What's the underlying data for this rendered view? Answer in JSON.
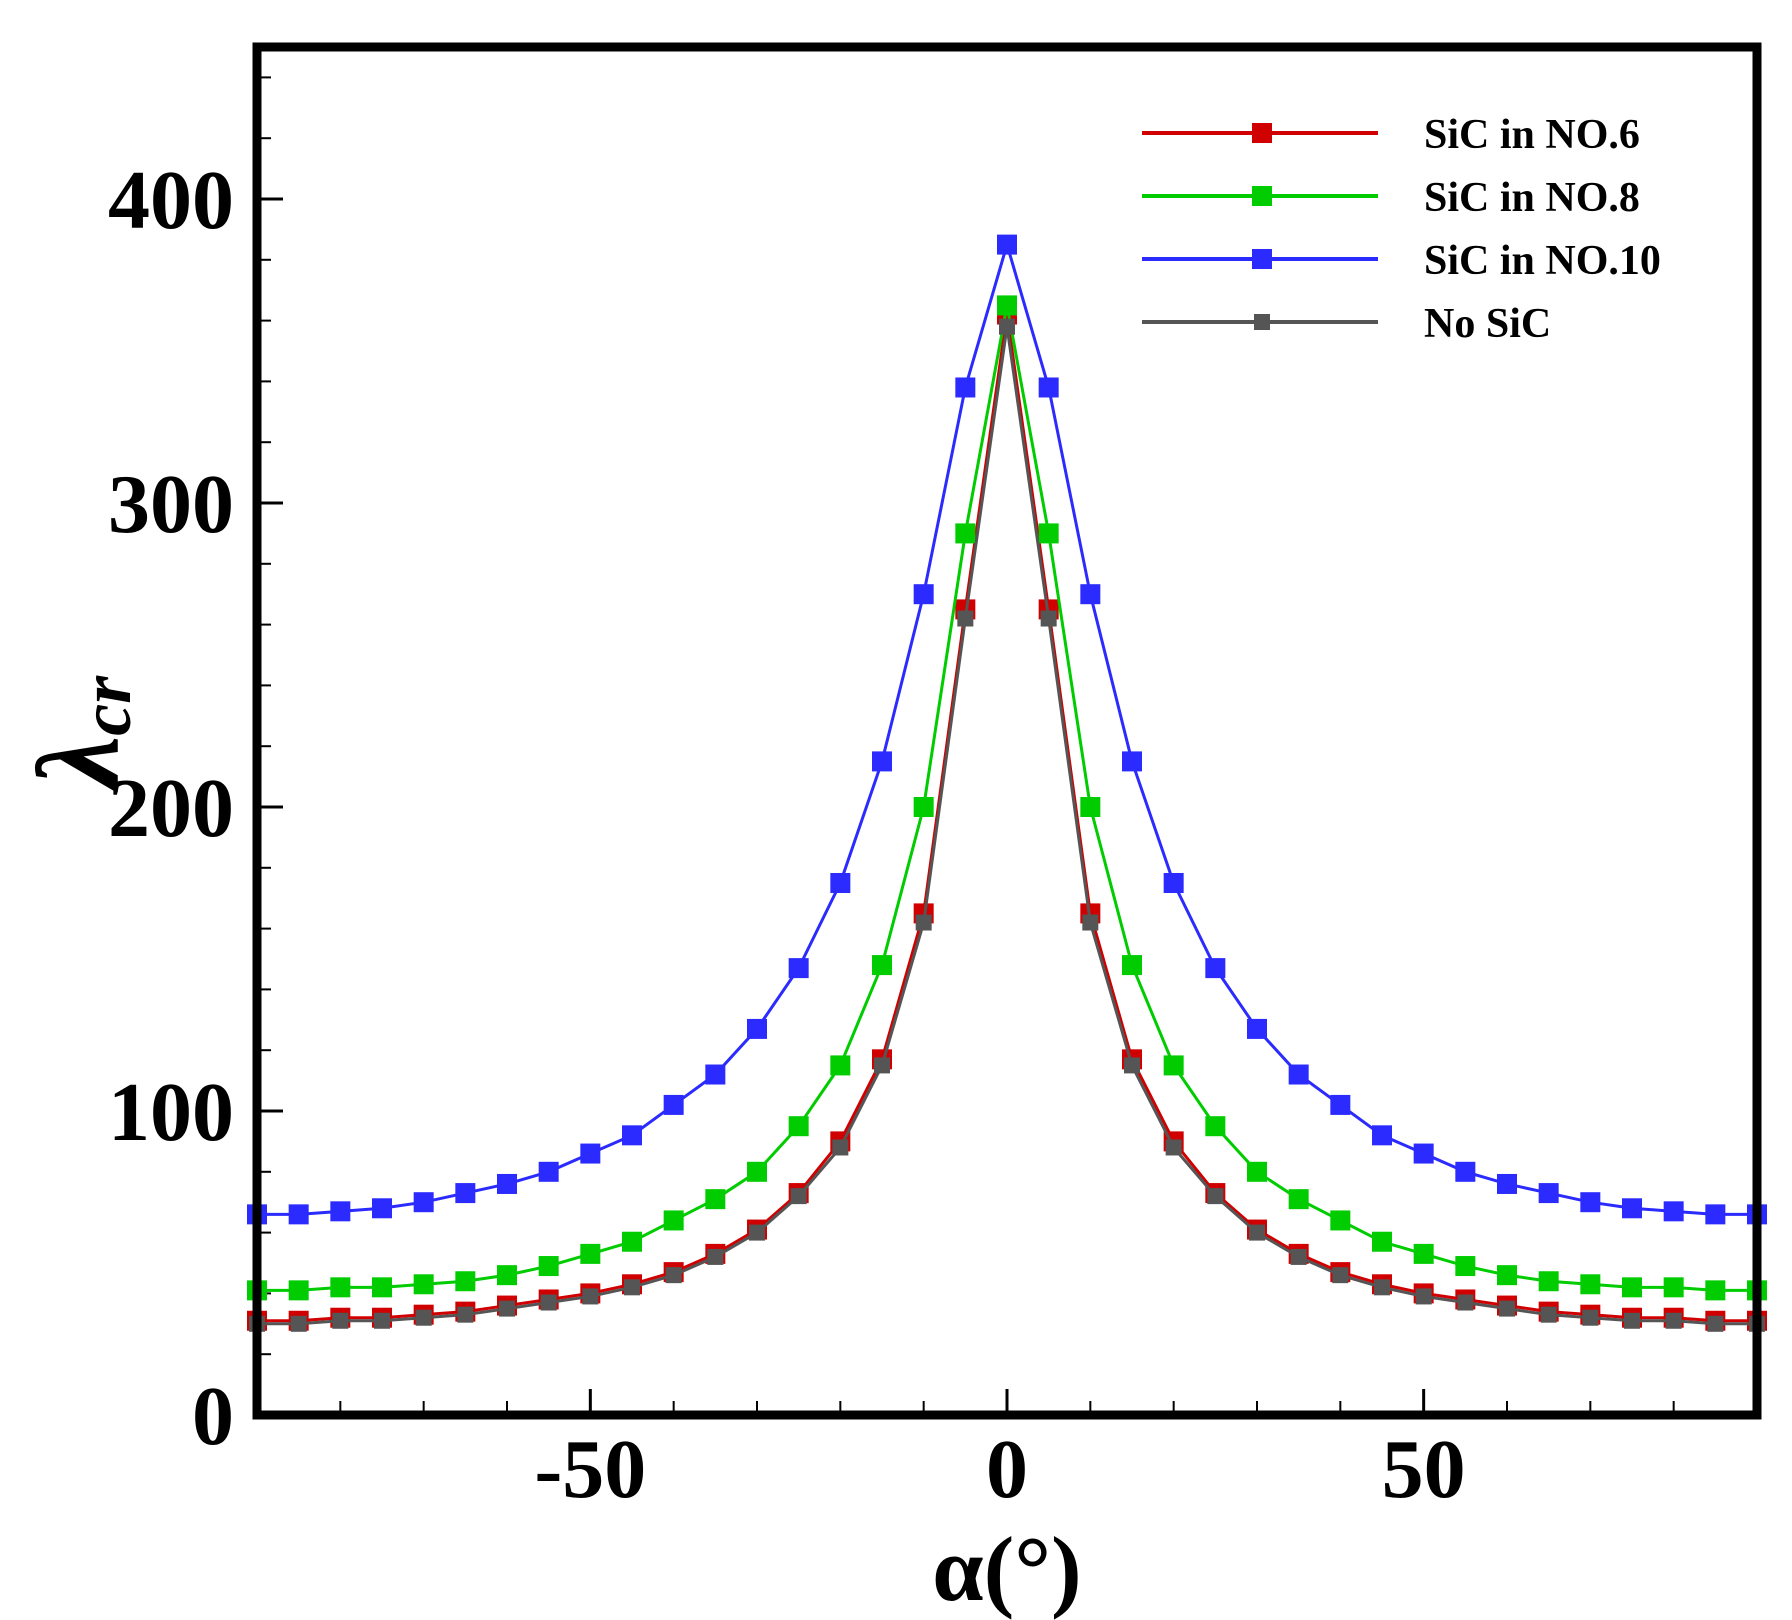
{
  "chart_data": {
    "type": "line",
    "title": "",
    "xlabel": "α(°)",
    "ylabel_main": "λ",
    "ylabel_sub": "cr",
    "xlim": [
      -90,
      90
    ],
    "ylim": [
      0,
      450
    ],
    "xticks": [
      -50,
      0,
      50
    ],
    "xtick_labels": [
      "-50",
      "0",
      "50"
    ],
    "yticks": [
      0,
      100,
      200,
      300,
      400
    ],
    "ytick_labels": [
      "0",
      "100",
      "200",
      "300",
      "400"
    ],
    "x_minor_step": 10,
    "y_minor_step": 20,
    "grid": false,
    "legend_position": "top-right",
    "x": [
      -90,
      -85,
      -80,
      -75,
      -70,
      -65,
      -60,
      -55,
      -50,
      -45,
      -40,
      -35,
      -30,
      -25,
      -20,
      -15,
      -10,
      -5,
      0,
      5,
      10,
      15,
      20,
      25,
      30,
      35,
      40,
      45,
      50,
      55,
      60,
      65,
      70,
      75,
      80,
      85,
      90
    ],
    "series": [
      {
        "name": "SiC in NO.6",
        "color": "#d00000",
        "marker_size": "large",
        "values": [
          31,
          31,
          32,
          32,
          33,
          34,
          36,
          38,
          40,
          43,
          47,
          53,
          61,
          73,
          90,
          117,
          165,
          265,
          362,
          265,
          165,
          117,
          90,
          73,
          61,
          53,
          47,
          43,
          40,
          38,
          36,
          34,
          33,
          32,
          32,
          31,
          31
        ]
      },
      {
        "name": "SiC in NO.8",
        "color": "#00cc00",
        "marker_size": "large",
        "values": [
          41,
          41,
          42,
          42,
          43,
          44,
          46,
          49,
          53,
          57,
          64,
          71,
          80,
          95,
          115,
          148,
          200,
          290,
          365,
          290,
          200,
          148,
          115,
          95,
          80,
          71,
          64,
          57,
          53,
          49,
          46,
          44,
          43,
          42,
          42,
          41,
          41
        ]
      },
      {
        "name": "SiC in NO.10",
        "color": "#2b2bff",
        "marker_size": "large",
        "values": [
          66,
          66,
          67,
          68,
          70,
          73,
          76,
          80,
          86,
          92,
          102,
          112,
          127,
          147,
          175,
          215,
          270,
          338,
          385,
          338,
          270,
          215,
          175,
          147,
          127,
          112,
          102,
          92,
          86,
          80,
          76,
          73,
          70,
          68,
          67,
          66,
          66
        ]
      },
      {
        "name": "No SiC",
        "color": "#555555",
        "marker_size": "small",
        "values": [
          30,
          30,
          31,
          31,
          32,
          33,
          35,
          37,
          39,
          42,
          46,
          52,
          60,
          72,
          88,
          115,
          162,
          262,
          358,
          262,
          162,
          115,
          88,
          72,
          60,
          52,
          46,
          42,
          39,
          37,
          35,
          33,
          32,
          31,
          31,
          30,
          30
        ]
      }
    ]
  }
}
